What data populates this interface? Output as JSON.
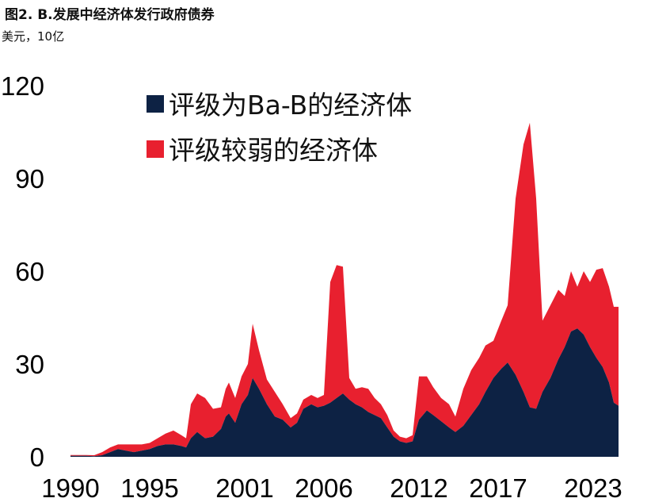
{
  "title": "图2. B.发展中经济体发行政府债券",
  "subtitle": "美元，10亿",
  "chart_data": {
    "type": "area",
    "stacked": true,
    "ylim": [
      0,
      120
    ],
    "xlim": [
      1990.0,
      2024.6
    ],
    "y_ticks": [
      "0",
      "30",
      "60",
      "90",
      "120"
    ],
    "x_ticks": [
      "1990",
      "1995",
      "2001",
      "2006",
      "2012",
      "2017",
      "2023"
    ],
    "x_tick_years": [
      1990,
      1995,
      2001,
      2006,
      2012,
      2017,
      2023
    ],
    "legend_position": "top",
    "series": [
      {
        "name": "评级为Ba-B的经济体",
        "color": "#0d2244",
        "values": [
          [
            1990.0,
            0.3
          ],
          [
            1991.0,
            0.3
          ],
          [
            1991.5,
            0.2
          ],
          [
            1992.0,
            0.5
          ],
          [
            1992.5,
            1.5
          ],
          [
            1993.0,
            2.5
          ],
          [
            1993.5,
            2.0
          ],
          [
            1994.0,
            1.5
          ],
          [
            1994.5,
            2.0
          ],
          [
            1995.0,
            2.5
          ],
          [
            1995.5,
            3.5
          ],
          [
            1996.0,
            4.0
          ],
          [
            1996.5,
            4.0
          ],
          [
            1997.0,
            3.5
          ],
          [
            1997.3,
            3.0
          ],
          [
            1997.6,
            6.0
          ],
          [
            1998.0,
            8.0
          ],
          [
            1998.5,
            6.0
          ],
          [
            1999.0,
            6.5
          ],
          [
            1999.5,
            9.0
          ],
          [
            1999.8,
            13.0
          ],
          [
            2000.0,
            14.0
          ],
          [
            2000.4,
            11.0
          ],
          [
            2000.8,
            17.0
          ],
          [
            2001.2,
            20.0
          ],
          [
            2001.5,
            25.5
          ],
          [
            2001.9,
            22.0
          ],
          [
            2002.4,
            17.0
          ],
          [
            2002.9,
            13.0
          ],
          [
            2003.4,
            12.0
          ],
          [
            2003.9,
            9.5
          ],
          [
            2004.3,
            11.0
          ],
          [
            2004.7,
            15.5
          ],
          [
            2005.2,
            17.0
          ],
          [
            2005.6,
            16.0
          ],
          [
            2006.0,
            16.5
          ],
          [
            2006.4,
            17.5
          ],
          [
            2006.8,
            19.0
          ],
          [
            2007.2,
            20.5
          ],
          [
            2007.6,
            18.5
          ],
          [
            2008.0,
            17.0
          ],
          [
            2008.4,
            16.0
          ],
          [
            2008.8,
            14.5
          ],
          [
            2009.2,
            13.5
          ],
          [
            2009.6,
            12.5
          ],
          [
            2010.0,
            9.5
          ],
          [
            2010.4,
            6.5
          ],
          [
            2010.8,
            5.0
          ],
          [
            2011.2,
            4.5
          ],
          [
            2011.6,
            5.0
          ],
          [
            2012.0,
            12.0
          ],
          [
            2012.5,
            15.0
          ],
          [
            2012.9,
            13.5
          ],
          [
            2013.4,
            11.5
          ],
          [
            2013.9,
            9.5
          ],
          [
            2014.3,
            8.0
          ],
          [
            2014.8,
            10.0
          ],
          [
            2015.3,
            13.5
          ],
          [
            2015.8,
            17.0
          ],
          [
            2016.2,
            21.0
          ],
          [
            2016.7,
            25.5
          ],
          [
            2017.2,
            28.5
          ],
          [
            2017.6,
            30.5
          ],
          [
            2018.1,
            26.5
          ],
          [
            2018.6,
            21.0
          ],
          [
            2019.0,
            16.0
          ],
          [
            2019.4,
            15.5
          ],
          [
            2019.8,
            21.0
          ],
          [
            2020.3,
            25.5
          ],
          [
            2020.8,
            31.5
          ],
          [
            2021.2,
            35.5
          ],
          [
            2021.6,
            40.5
          ],
          [
            2022.0,
            41.5
          ],
          [
            2022.4,
            39.5
          ],
          [
            2022.8,
            35.5
          ],
          [
            2023.2,
            32.0
          ],
          [
            2023.6,
            29.0
          ],
          [
            2024.0,
            24.0
          ],
          [
            2024.3,
            17.5
          ],
          [
            2024.6,
            16.5
          ]
        ]
      },
      {
        "name": "评级较弱的经济体",
        "color": "#e8202f",
        "values": [
          [
            1990.0,
            0.3
          ],
          [
            1991.0,
            0.3
          ],
          [
            1991.5,
            0.3
          ],
          [
            1992.0,
            1.0
          ],
          [
            1992.5,
            1.5
          ],
          [
            1993.0,
            1.5
          ],
          [
            1993.5,
            2.0
          ],
          [
            1994.0,
            2.5
          ],
          [
            1994.5,
            2.0
          ],
          [
            1995.0,
            2.0
          ],
          [
            1995.5,
            2.5
          ],
          [
            1996.0,
            3.5
          ],
          [
            1996.5,
            4.5
          ],
          [
            1997.0,
            3.5
          ],
          [
            1997.3,
            3.0
          ],
          [
            1997.6,
            11.0
          ],
          [
            1998.0,
            12.5
          ],
          [
            1998.5,
            13.0
          ],
          [
            1999.0,
            9.0
          ],
          [
            1999.5,
            7.0
          ],
          [
            1999.8,
            9.0
          ],
          [
            2000.0,
            10.0
          ],
          [
            2000.4,
            8.0
          ],
          [
            2000.8,
            9.0
          ],
          [
            2001.2,
            10.0
          ],
          [
            2001.5,
            17.5
          ],
          [
            2001.9,
            12.5
          ],
          [
            2002.4,
            8.0
          ],
          [
            2002.9,
            8.0
          ],
          [
            2003.4,
            5.0
          ],
          [
            2003.9,
            3.0
          ],
          [
            2004.3,
            3.0
          ],
          [
            2004.7,
            3.0
          ],
          [
            2005.2,
            3.0
          ],
          [
            2005.6,
            3.0
          ],
          [
            2006.0,
            3.5
          ],
          [
            2006.4,
            39.0
          ],
          [
            2006.8,
            43.0
          ],
          [
            2007.2,
            41.0
          ],
          [
            2007.6,
            7.0
          ],
          [
            2008.0,
            5.0
          ],
          [
            2008.4,
            6.5
          ],
          [
            2008.8,
            7.5
          ],
          [
            2009.2,
            5.5
          ],
          [
            2009.6,
            4.5
          ],
          [
            2010.0,
            4.0
          ],
          [
            2010.4,
            2.0
          ],
          [
            2010.8,
            1.5
          ],
          [
            2011.2,
            1.5
          ],
          [
            2011.6,
            2.0
          ],
          [
            2012.0,
            14.0
          ],
          [
            2012.5,
            11.0
          ],
          [
            2012.9,
            9.0
          ],
          [
            2013.4,
            7.5
          ],
          [
            2013.9,
            7.5
          ],
          [
            2014.3,
            5.0
          ],
          [
            2014.8,
            12.0
          ],
          [
            2015.3,
            14.5
          ],
          [
            2015.8,
            15.0
          ],
          [
            2016.2,
            15.0
          ],
          [
            2016.7,
            12.0
          ],
          [
            2017.2,
            15.5
          ],
          [
            2017.6,
            18.5
          ],
          [
            2018.1,
            57.0
          ],
          [
            2018.6,
            80.0
          ],
          [
            2019.0,
            92.0
          ],
          [
            2019.4,
            68.0
          ],
          [
            2019.8,
            23.0
          ],
          [
            2020.3,
            23.5
          ],
          [
            2020.8,
            22.5
          ],
          [
            2021.2,
            16.5
          ],
          [
            2021.6,
            19.5
          ],
          [
            2022.0,
            13.5
          ],
          [
            2022.4,
            20.5
          ],
          [
            2022.8,
            21.0
          ],
          [
            2023.2,
            28.5
          ],
          [
            2023.6,
            32.0
          ],
          [
            2024.0,
            31.0
          ],
          [
            2024.3,
            31.0
          ],
          [
            2024.6,
            32.0
          ]
        ]
      }
    ]
  }
}
